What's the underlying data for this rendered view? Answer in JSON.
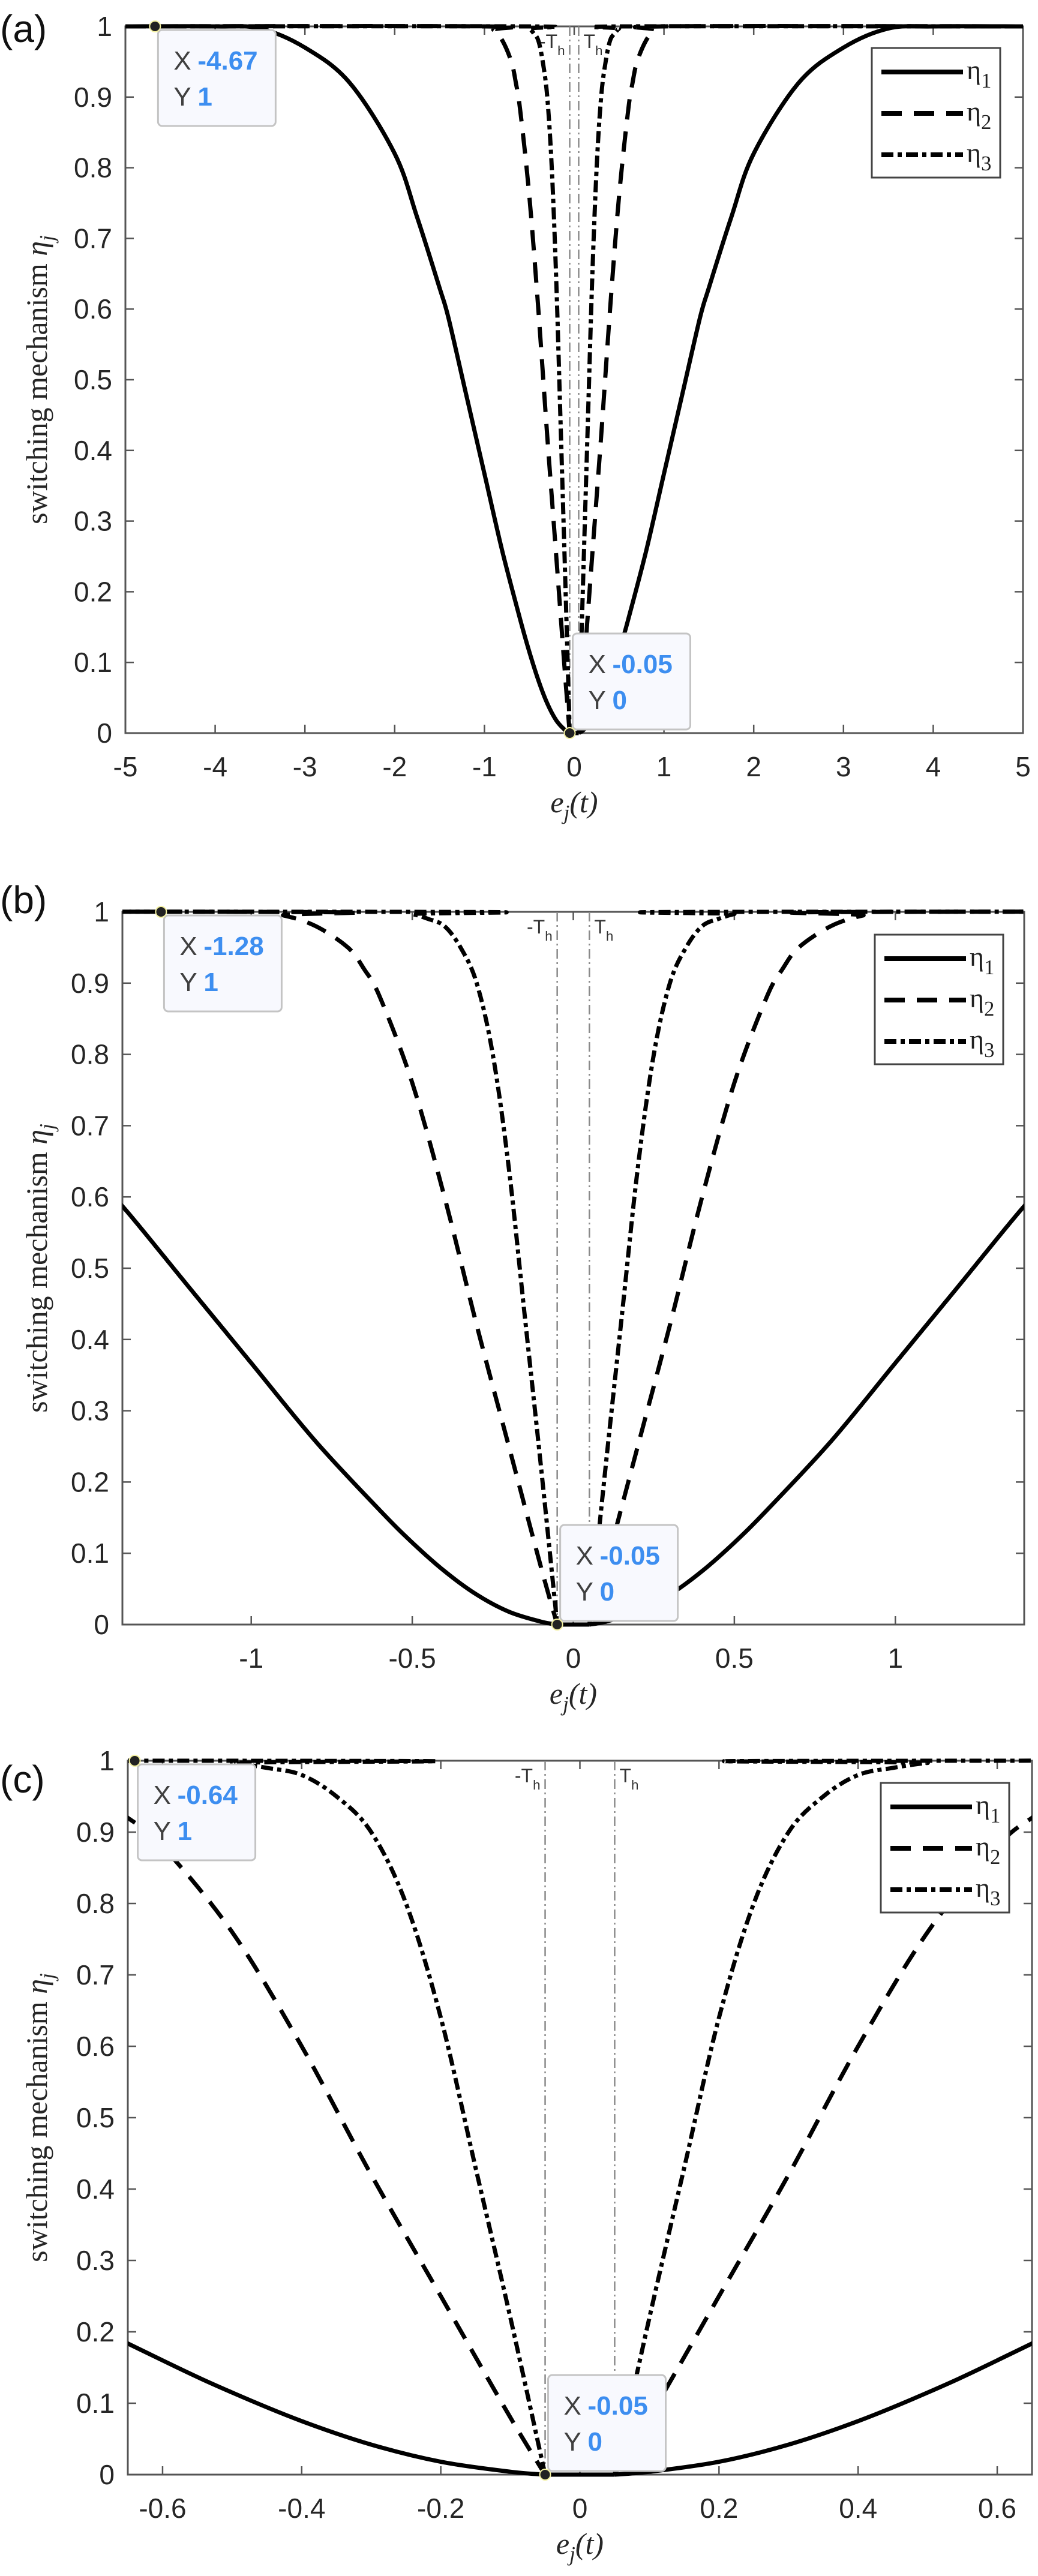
{
  "chart_data": [
    {
      "type": "line",
      "panel_label": "(a)",
      "xlabel": {
        "main": "e",
        "sub": "j",
        "tail": "(t)"
      },
      "ylabel": {
        "main": "switching mechanism ",
        "symbol": "η",
        "sub": "j"
      },
      "xlim": [
        -5,
        5
      ],
      "ylim": [
        0,
        1
      ],
      "xticks": [
        -5,
        -4,
        -3,
        -2,
        -1,
        0,
        1,
        2,
        3,
        4,
        5
      ],
      "xtick_labels": [
        "-5",
        "-4",
        "-3",
        "-2",
        "-1",
        "0",
        "1",
        "2",
        "3",
        "4",
        "5"
      ],
      "yticks": [
        0,
        0.1,
        0.2,
        0.3,
        0.4,
        0.5,
        0.6,
        0.7,
        0.8,
        0.9,
        1
      ],
      "ytick_labels": [
        "0",
        "0.1",
        "0.2",
        "0.3",
        "0.4",
        "0.5",
        "0.6",
        "0.7",
        "0.8",
        "0.9",
        "1"
      ],
      "grid": false,
      "legend_position": "top-right",
      "threshold": {
        "value": 0.05,
        "neg_label": {
          "main": "-T",
          "sub": "h"
        },
        "pos_label": {
          "main": "T",
          "sub": "h"
        }
      },
      "datatips": [
        {
          "x": -4.67,
          "y": 1,
          "x_key": "X",
          "x_text": "-4.67",
          "y_key": "Y",
          "y_text": "1"
        },
        {
          "x": -0.05,
          "y": 0,
          "x_key": "X",
          "x_text": "-0.05",
          "y_key": "Y",
          "y_text": "0"
        }
      ]
    },
    {
      "type": "line",
      "panel_label": "(b)",
      "xlabel": {
        "main": "e",
        "sub": "j",
        "tail": "(t)"
      },
      "ylabel": {
        "main": "switching mechanism ",
        "symbol": "η",
        "sub": "j"
      },
      "xlim": [
        -1.4,
        1.4
      ],
      "ylim": [
        0,
        1
      ],
      "xticks": [
        -1,
        -0.5,
        0,
        0.5,
        1
      ],
      "xtick_labels": [
        "-1",
        "-0.5",
        "0",
        "0.5",
        "1"
      ],
      "yticks": [
        0,
        0.1,
        0.2,
        0.3,
        0.4,
        0.5,
        0.6,
        0.7,
        0.8,
        0.9,
        1
      ],
      "ytick_labels": [
        "0",
        "0.1",
        "0.2",
        "0.3",
        "0.4",
        "0.5",
        "0.6",
        "0.7",
        "0.8",
        "0.9",
        "1"
      ],
      "grid": false,
      "legend_position": "top-right",
      "threshold": {
        "value": 0.05,
        "neg_label": {
          "main": "-T",
          "sub": "h"
        },
        "pos_label": {
          "main": "T",
          "sub": "h"
        }
      },
      "datatips": [
        {
          "x": -1.28,
          "y": 1,
          "x_key": "X",
          "x_text": "-1.28",
          "y_key": "Y",
          "y_text": "1"
        },
        {
          "x": -0.05,
          "y": 0,
          "x_key": "X",
          "x_text": "-0.05",
          "y_key": "Y",
          "y_text": "0"
        }
      ]
    },
    {
      "type": "line",
      "panel_label": "(c)",
      "xlabel": {
        "main": "e",
        "sub": "j",
        "tail": "(t)"
      },
      "ylabel": {
        "main": "switching mechanism ",
        "symbol": "η",
        "sub": "j"
      },
      "xlim": [
        -0.65,
        0.65
      ],
      "ylim": [
        0,
        1
      ],
      "xticks": [
        -0.6,
        -0.4,
        -0.2,
        0,
        0.2,
        0.4,
        0.6
      ],
      "xtick_labels": [
        "-0.6",
        "-0.4",
        "-0.2",
        "0",
        "0.2",
        "0.4",
        "0.6"
      ],
      "yticks": [
        0,
        0.1,
        0.2,
        0.3,
        0.4,
        0.5,
        0.6,
        0.7,
        0.8,
        0.9,
        1
      ],
      "ytick_labels": [
        "0",
        "0.1",
        "0.2",
        "0.3",
        "0.4",
        "0.5",
        "0.6",
        "0.7",
        "0.8",
        "0.9",
        "1"
      ],
      "grid": false,
      "legend_position": "top-right",
      "threshold": {
        "value": 0.05,
        "neg_label": {
          "main": "-T",
          "sub": "h"
        },
        "pos_label": {
          "main": "T",
          "sub": "h"
        }
      },
      "datatips": [
        {
          "x": -0.64,
          "y": 1,
          "x_key": "X",
          "x_text": "-0.64",
          "y_key": "Y",
          "y_text": "1"
        },
        {
          "x": -0.05,
          "y": 0,
          "x_key": "X",
          "x_text": "-0.05",
          "y_key": "Y",
          "y_text": "0"
        }
      ]
    }
  ],
  "series": [
    {
      "name": "η1",
      "symbol": "η",
      "sub": "1",
      "style": "solid",
      "color": "#000000",
      "symmetric": true,
      "left_half": [
        [
          -5,
          1
        ],
        [
          -4,
          1
        ],
        [
          -3.5,
          0.997
        ],
        [
          -3,
          0.97
        ],
        [
          -2.5,
          0.92
        ],
        [
          -2,
          0.82
        ],
        [
          -1.75,
          0.73
        ],
        [
          -1.5,
          0.63
        ],
        [
          -1.4,
          0.587
        ],
        [
          -1.2,
          0.477
        ],
        [
          -1,
          0.367
        ],
        [
          -0.8,
          0.257
        ],
        [
          -0.6,
          0.16
        ],
        [
          -0.5,
          0.115
        ],
        [
          -0.4,
          0.075
        ],
        [
          -0.3,
          0.042
        ],
        [
          -0.2,
          0.018
        ],
        [
          -0.1,
          0.004
        ],
        [
          -0.05,
          0
        ]
      ]
    },
    {
      "name": "η2",
      "symbol": "η",
      "sub": "2",
      "style": "dashed",
      "color": "#000000",
      "symmetric": true,
      "left_half": [
        [
          -5,
          1
        ],
        [
          -1,
          1
        ],
        [
          -0.9,
          0.995
        ],
        [
          -0.8,
          0.98
        ],
        [
          -0.7,
          0.95
        ],
        [
          -0.65,
          0.92
        ],
        [
          -0.6,
          0.88
        ],
        [
          -0.5,
          0.76
        ],
        [
          -0.4,
          0.6
        ],
        [
          -0.3,
          0.42
        ],
        [
          -0.2,
          0.25
        ],
        [
          -0.1,
          0.08
        ],
        [
          -0.05,
          0
        ]
      ]
    },
    {
      "name": "η3",
      "symbol": "η",
      "sub": "3",
      "style": "dashdot",
      "color": "#000000",
      "symmetric": true,
      "left_half": [
        [
          -5,
          1
        ],
        [
          -0.55,
          1
        ],
        [
          -0.5,
          0.997
        ],
        [
          -0.45,
          0.99
        ],
        [
          -0.4,
          0.98
        ],
        [
          -0.35,
          0.95
        ],
        [
          -0.3,
          0.9
        ],
        [
          -0.25,
          0.8
        ],
        [
          -0.2,
          0.64
        ],
        [
          -0.15,
          0.43
        ],
        [
          -0.1,
          0.22
        ],
        [
          -0.05,
          0
        ]
      ]
    }
  ],
  "colors": {
    "axis": "#555555",
    "threshold_line": "#8a8a8a",
    "datatip_value": "#3d8ef0",
    "datatip_bg": "#f8f9fe"
  }
}
